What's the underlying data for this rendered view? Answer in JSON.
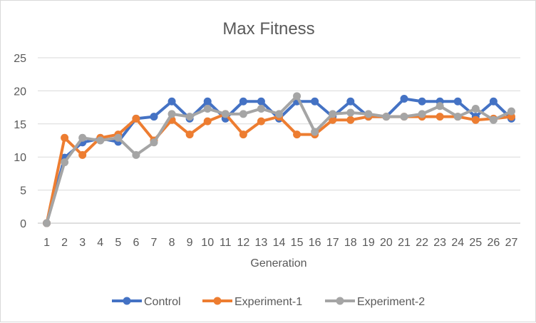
{
  "chart_data": {
    "type": "line",
    "title": "Max Fitness",
    "xlabel": "Generation",
    "ylabel": "",
    "ylim": [
      0,
      25
    ],
    "yticks": [
      "0",
      "5",
      "10",
      "15",
      "20",
      "25"
    ],
    "grid": "horizontal",
    "legend_position": "bottom",
    "categories": [
      "1",
      "2",
      "3",
      "4",
      "5",
      "6",
      "7",
      "8",
      "9",
      "10",
      "11",
      "12",
      "13",
      "14",
      "15",
      "16",
      "17",
      "18",
      "19",
      "20",
      "21",
      "22",
      "23",
      "24",
      "25",
      "26",
      "27"
    ],
    "series": [
      {
        "name": "Control",
        "color": "#4472c4",
        "values": [
          0,
          9.9,
          12.2,
          12.8,
          12.3,
          15.8,
          16.1,
          18.4,
          15.8,
          18.4,
          15.8,
          18.4,
          18.4,
          15.8,
          18.4,
          18.4,
          16.1,
          18.4,
          16.1,
          16.1,
          18.8,
          18.4,
          18.4,
          18.4,
          16.1,
          18.4,
          15.8
        ]
      },
      {
        "name": "Experiment-1",
        "color": "#ed7d31",
        "values": [
          0,
          12.9,
          10.3,
          12.9,
          13.4,
          15.8,
          12.5,
          15.6,
          13.4,
          15.4,
          16.5,
          13.4,
          15.4,
          16.1,
          13.4,
          13.4,
          15.6,
          15.6,
          16.1,
          16.1,
          16.1,
          16.1,
          16.1,
          16.1,
          15.6,
          15.8,
          16.1
        ]
      },
      {
        "name": "Experiment-2",
        "color": "#a5a5a5",
        "values": [
          0,
          9.2,
          12.9,
          12.5,
          12.9,
          10.3,
          12.2,
          16.5,
          16.1,
          17.3,
          16.5,
          16.5,
          17.3,
          16.5,
          19.2,
          13.8,
          16.5,
          16.7,
          16.5,
          16.1,
          16.1,
          16.5,
          17.7,
          16.1,
          17.3,
          15.6,
          16.9
        ]
      }
    ]
  }
}
